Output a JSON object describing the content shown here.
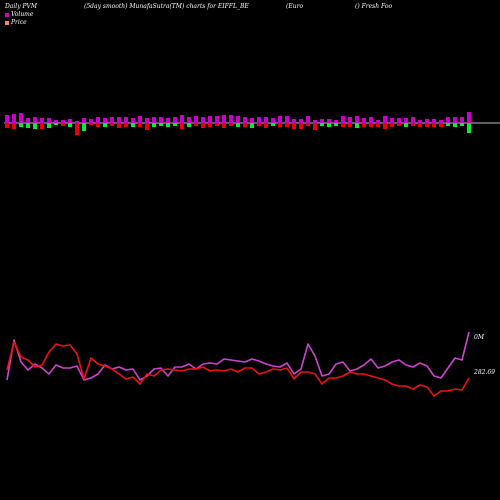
{
  "header": {
    "left": "Daily PVM",
    "middle": "(5day smooth) MunafaSutra(TM) charts for EIFFL_BE",
    "right1": "(Euro",
    "right2": "() Fresh Foo"
  },
  "legend": {
    "volume_label": "Volume",
    "price_label": "Price",
    "volume_color": "#cc00cc",
    "price_color": "#ff7f7f"
  },
  "end_labels": {
    "volume_end": "0M",
    "price_end": "282.69"
  },
  "colors": {
    "background": "#000000",
    "bar_up": "#cc00cc",
    "bar_down_red": "#ee0000",
    "bar_down_green": "#00ee33",
    "volume_line": "#cc44cc",
    "price_line": "#ee1111",
    "baseline": "#bbbbbb"
  },
  "chart_data": {
    "type": "bar",
    "x": [
      1,
      2,
      3,
      4,
      5,
      6,
      7,
      8,
      9,
      10,
      11,
      12,
      13,
      14,
      15,
      16,
      17,
      18,
      19,
      20,
      21,
      22,
      23,
      24,
      25,
      26,
      27,
      28,
      29,
      30,
      31,
      32,
      33,
      34,
      35,
      36,
      37,
      38,
      39,
      40,
      41,
      42,
      43,
      44,
      45,
      46,
      47,
      48,
      49,
      50,
      51,
      52,
      53,
      54,
      55,
      56,
      57,
      58,
      59,
      60,
      61,
      62,
      63,
      64,
      65,
      66,
      67
    ],
    "series": [
      {
        "name": "Volume",
        "type": "bar",
        "up": [
          8,
          9,
          10,
          5,
          6,
          5,
          5,
          3,
          3,
          4,
          2,
          5,
          4,
          6,
          5,
          6,
          6,
          6,
          5,
          7,
          5,
          6,
          6,
          5,
          6,
          8,
          6,
          7,
          6,
          7,
          7,
          8,
          8,
          7,
          6,
          5,
          6,
          6,
          5,
          7,
          7,
          4,
          4,
          7,
          3,
          4,
          4,
          3,
          7,
          6,
          7,
          5,
          6,
          3,
          7,
          5,
          5,
          5,
          6,
          3,
          4,
          4,
          3,
          6,
          6,
          6,
          11
        ],
        "down": [
          5,
          6,
          4,
          5,
          6,
          6,
          5,
          2,
          3,
          4,
          12,
          8,
          2,
          4,
          4,
          3,
          5,
          4,
          4,
          4,
          7,
          4,
          3,
          4,
          3,
          6,
          4,
          3,
          5,
          4,
          3,
          5,
          3,
          4,
          4,
          5,
          3,
          5,
          3,
          4,
          4,
          6,
          6,
          3,
          7,
          3,
          4,
          3,
          4,
          4,
          5,
          4,
          4,
          4,
          6,
          4,
          3,
          4,
          3,
          4,
          4,
          4,
          4,
          3,
          4,
          3,
          10
        ],
        "down_color": [
          "r",
          "r",
          "g",
          "g",
          "g",
          "r",
          "g",
          "g",
          "r",
          "g",
          "r",
          "g",
          "r",
          "r",
          "g",
          "r",
          "r",
          "r",
          "g",
          "r",
          "r",
          "g",
          "g",
          "g",
          "g",
          "r",
          "g",
          "r",
          "r",
          "r",
          "r",
          "r",
          "r",
          "g",
          "r",
          "g",
          "r",
          "r",
          "g",
          "r",
          "r",
          "r",
          "r",
          "r",
          "r",
          "g",
          "g",
          "g",
          "r",
          "r",
          "g",
          "r",
          "r",
          "r",
          "r",
          "r",
          "r",
          "g",
          "r",
          "r",
          "r",
          "r",
          "r",
          "g",
          "g",
          "g",
          "g"
        ]
      },
      {
        "name": "Volume",
        "type": "line",
        "values": [
          14,
          54,
          32,
          24,
          30,
          26,
          20,
          29,
          26,
          26,
          28,
          14,
          16,
          20,
          29,
          25,
          27,
          24,
          25,
          14,
          18,
          25,
          26,
          18,
          27,
          27,
          30,
          25,
          30,
          31,
          30,
          35,
          34,
          33,
          32,
          35,
          33,
          30,
          28,
          27,
          31,
          20,
          25,
          50,
          38,
          18,
          20,
          30,
          32,
          23,
          25,
          29,
          35,
          26,
          28,
          32,
          34,
          29,
          27,
          31,
          28,
          18,
          16,
          26,
          36,
          34,
          62
        ],
        "end_label": "0M"
      },
      {
        "name": "Price",
        "type": "line",
        "values": [
          24,
          52,
          37,
          34,
          27,
          29,
          42,
          50,
          48,
          49,
          40,
          15,
          36,
          30,
          28,
          25,
          20,
          15,
          17,
          10,
          20,
          18,
          24,
          25,
          24,
          23,
          25,
          25,
          27,
          23,
          24,
          23,
          25,
          22,
          26,
          26,
          20,
          22,
          25,
          24,
          26,
          15,
          22,
          22,
          20,
          10,
          16,
          16,
          18,
          22,
          20,
          20,
          18,
          16,
          14,
          10,
          8,
          8,
          5,
          9,
          7,
          -2,
          3,
          3,
          5,
          4,
          16
        ],
        "end_label": "282.69"
      }
    ],
    "title": "Daily PVM (5day smooth) MunafaSutra(TM) charts for EIFFL_BE",
    "legend": [
      "Volume",
      "Price"
    ],
    "legend_position": "top-left",
    "grid": false
  }
}
